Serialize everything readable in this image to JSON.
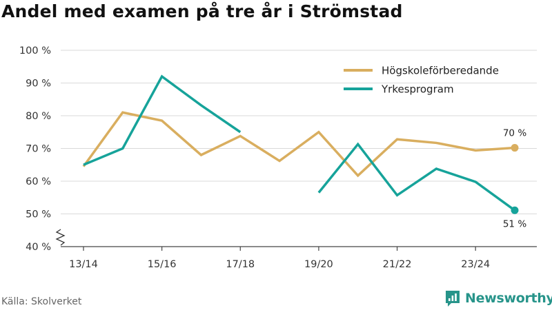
{
  "title": "Andel med examen på tre år i Strömstad",
  "source": "Källa: Skolverket",
  "brand": "Newsworthy",
  "colors": {
    "hogskole": "#d9ae5f",
    "yrkes": "#16a39a",
    "grid": "#d9d9d9",
    "brand": "#27948a"
  },
  "chart_data": {
    "type": "line",
    "title": "Andel med examen på tre år i Strömstad",
    "xlabel": "",
    "ylabel": "",
    "x": [
      "13/14",
      "14/15",
      "15/16",
      "16/17",
      "17/18",
      "18/19",
      "19/20",
      "20/21",
      "21/22",
      "22/23",
      "23/24",
      "24/25"
    ],
    "x_tick_labels": [
      "13/14",
      "15/16",
      "17/18",
      "19/20",
      "21/22",
      "23/24"
    ],
    "y_tick_labels": [
      "40 %",
      "50 %",
      "60 %",
      "70 %",
      "80 %",
      "90 %",
      "100 %"
    ],
    "ylim": [
      40,
      100
    ],
    "y_axis_break": true,
    "grid": true,
    "legend_position": "top-right",
    "series": [
      {
        "name": "Högskoleförberedande",
        "color": "#d9ae5f",
        "values": [
          64.5,
          81,
          78.5,
          68,
          73.8,
          66.2,
          75,
          61.7,
          72.8,
          71.7,
          69.4,
          70.2
        ],
        "end_label": "70 %"
      },
      {
        "name": "Yrkesprogram",
        "color": "#16a39a",
        "values": [
          65,
          70,
          92,
          83.2,
          75,
          null,
          56.5,
          71.3,
          55.7,
          63.8,
          59.8,
          51.1
        ],
        "end_label": "51 %"
      }
    ]
  }
}
